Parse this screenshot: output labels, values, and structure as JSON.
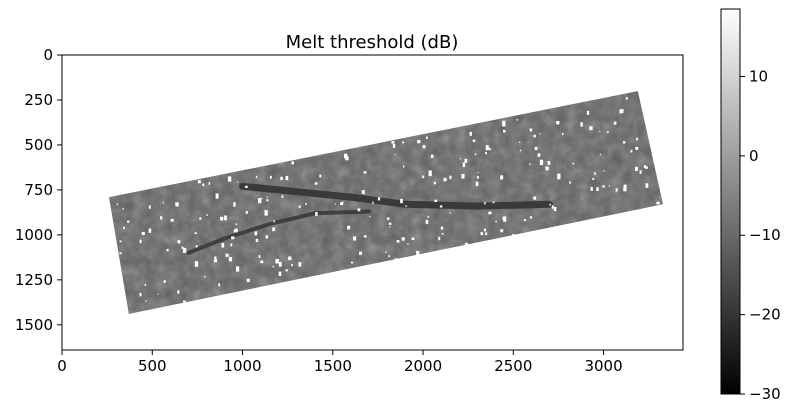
{
  "chart_data": {
    "type": "heatmap",
    "title": "Melt threshold (dB)",
    "xlabel": "",
    "ylabel": "",
    "xlim": [
      0,
      3440
    ],
    "ylim": [
      1640,
      0
    ],
    "x_ticks": [
      0,
      500,
      1000,
      1500,
      2000,
      2500,
      3000
    ],
    "y_ticks": [
      0,
      250,
      500,
      750,
      1000,
      1250,
      1500
    ],
    "grid": false,
    "colormap": "gray",
    "colorbar": {
      "range": [
        -30,
        18.5
      ],
      "ticks": [
        10,
        0,
        -10,
        -20,
        -30
      ]
    },
    "swath_footprint": {
      "corners": [
        [
          260,
          790
        ],
        [
          3190,
          200
        ],
        [
          3330,
          830
        ],
        [
          370,
          1440
        ]
      ]
    },
    "features": {
      "dark_glacier_band": [
        [
          1000,
          730
        ],
        [
          1300,
          760
        ],
        [
          1600,
          790
        ],
        [
          1900,
          830
        ],
        [
          2300,
          840
        ],
        [
          2700,
          830
        ]
      ],
      "dark_branch": [
        [
          700,
          1100
        ],
        [
          900,
          1020
        ],
        [
          1150,
          940
        ],
        [
          1400,
          880
        ],
        [
          1700,
          870
        ]
      ],
      "white_patches_values_shown": "no data"
    },
    "background_value_db": -12,
    "colors": {
      "swath_mid": "#626262",
      "swath_dark": "#3a3a3a",
      "nodata": "#ffffff"
    }
  }
}
